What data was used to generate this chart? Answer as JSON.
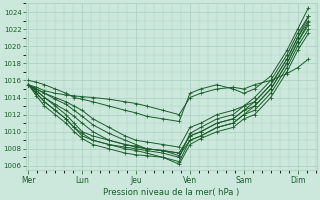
{
  "xlabel": "Pression niveau de la mer( hPa )",
  "ylim": [
    1005.5,
    1025.0
  ],
  "yticks": [
    1006,
    1008,
    1010,
    1012,
    1014,
    1016,
    1018,
    1020,
    1022,
    1024
  ],
  "xtick_labels": [
    "Mer",
    "Lun",
    "Jeu",
    "Ven",
    "Sam",
    "Dim"
  ],
  "xtick_positions": [
    0,
    1,
    2,
    3,
    4,
    5
  ],
  "xlim": [
    -0.05,
    5.35
  ],
  "background_color": "#cce8dc",
  "grid_color": "#aacfbe",
  "line_color": "#1a5c2a",
  "line_width": 0.7,
  "marker": "+",
  "marker_size": 2.5,
  "lines": [
    {
      "x": [
        0.0,
        0.15,
        0.3,
        0.5,
        0.7,
        0.85,
        1.0,
        1.2,
        1.5,
        1.8,
        2.0,
        2.2,
        2.5,
        2.8,
        3.0,
        3.2,
        3.5,
        3.8,
        4.0,
        4.2,
        4.5,
        4.8,
        5.0,
        5.2
      ],
      "y": [
        1015.5,
        1015.2,
        1014.8,
        1014.5,
        1014.3,
        1014.2,
        1014.1,
        1014.0,
        1013.8,
        1013.5,
        1013.3,
        1013.0,
        1012.5,
        1012.0,
        1014.0,
        1014.5,
        1015.0,
        1015.2,
        1015.0,
        1015.5,
        1016.0,
        1016.8,
        1017.5,
        1018.5
      ]
    },
    {
      "x": [
        0.0,
        0.15,
        0.3,
        0.5,
        0.7,
        0.85,
        1.0,
        1.2,
        1.5,
        1.8,
        2.0,
        2.2,
        2.5,
        2.8,
        3.0,
        3.2,
        3.5,
        3.8,
        4.0,
        4.2,
        4.5,
        4.8,
        5.0,
        5.2
      ],
      "y": [
        1015.5,
        1015.0,
        1014.5,
        1014.0,
        1013.5,
        1013.0,
        1012.5,
        1011.5,
        1010.5,
        1009.5,
        1009.0,
        1008.8,
        1008.5,
        1008.2,
        1010.5,
        1011.0,
        1012.0,
        1012.5,
        1013.0,
        1014.0,
        1016.0,
        1019.0,
        1021.5,
        1023.5
      ]
    },
    {
      "x": [
        0.0,
        0.15,
        0.3,
        0.5,
        0.7,
        0.85,
        1.0,
        1.2,
        1.5,
        1.8,
        2.0,
        2.2,
        2.5,
        2.8,
        3.0,
        3.2,
        3.5,
        3.8,
        4.0,
        4.2,
        4.5,
        4.8,
        5.0,
        5.2
      ],
      "y": [
        1015.5,
        1015.0,
        1014.5,
        1013.8,
        1013.2,
        1012.5,
        1011.8,
        1010.8,
        1009.8,
        1009.0,
        1008.5,
        1008.0,
        1007.8,
        1007.5,
        1009.5,
        1010.0,
        1011.0,
        1011.5,
        1012.5,
        1013.5,
        1015.5,
        1018.5,
        1021.0,
        1023.0
      ]
    },
    {
      "x": [
        0.0,
        0.15,
        0.3,
        0.5,
        0.7,
        0.85,
        1.0,
        1.2,
        1.5,
        1.8,
        2.0,
        2.2,
        2.5,
        2.8,
        3.0,
        3.2,
        3.5,
        3.8,
        4.0,
        4.2,
        4.5,
        4.8,
        5.0,
        5.2
      ],
      "y": [
        1015.5,
        1014.8,
        1014.0,
        1013.2,
        1012.5,
        1011.8,
        1011.0,
        1010.0,
        1009.0,
        1008.5,
        1008.2,
        1008.0,
        1007.8,
        1007.2,
        1009.0,
        1009.5,
        1010.5,
        1011.0,
        1012.0,
        1013.0,
        1015.0,
        1018.0,
        1020.5,
        1022.5
      ]
    },
    {
      "x": [
        0.0,
        0.15,
        0.3,
        0.5,
        0.7,
        0.85,
        1.0,
        1.2,
        1.5,
        1.8,
        2.0,
        2.2,
        2.5,
        2.8,
        3.0,
        3.2,
        3.5,
        3.8,
        4.0,
        4.2,
        4.5,
        4.8,
        5.0,
        5.2
      ],
      "y": [
        1015.5,
        1014.5,
        1013.5,
        1012.5,
        1011.5,
        1010.5,
        1009.8,
        1009.0,
        1008.5,
        1008.0,
        1007.8,
        1007.5,
        1007.0,
        1006.5,
        1009.0,
        1009.5,
        1010.5,
        1011.0,
        1012.0,
        1012.5,
        1014.5,
        1017.5,
        1020.0,
        1022.0
      ]
    },
    {
      "x": [
        0.0,
        0.15,
        0.3,
        0.5,
        0.7,
        0.85,
        1.0,
        1.2,
        1.5,
        1.8,
        2.0,
        2.2,
        2.5,
        2.8,
        3.0,
        3.2,
        3.5,
        3.8,
        4.0,
        4.2,
        4.5,
        4.8,
        5.0,
        5.2
      ],
      "y": [
        1015.5,
        1014.2,
        1013.0,
        1012.0,
        1011.0,
        1010.0,
        1009.2,
        1008.5,
        1008.0,
        1007.5,
        1007.3,
        1007.2,
        1007.0,
        1006.2,
        1008.5,
        1009.2,
        1010.0,
        1010.5,
        1011.5,
        1012.0,
        1014.0,
        1017.0,
        1019.5,
        1021.5
      ]
    },
    {
      "x": [
        0.0,
        0.15,
        0.3,
        0.5,
        0.7,
        0.85,
        1.0,
        1.2,
        1.5,
        1.8,
        2.0,
        2.2,
        2.5,
        2.8,
        3.0,
        3.2,
        3.5,
        3.8,
        4.0,
        4.2,
        4.5,
        4.8,
        5.0,
        5.2
      ],
      "y": [
        1016.0,
        1015.8,
        1015.5,
        1015.0,
        1014.5,
        1014.0,
        1013.8,
        1013.5,
        1013.0,
        1012.5,
        1012.2,
        1011.8,
        1011.5,
        1011.2,
        1014.5,
        1015.0,
        1015.5,
        1015.0,
        1014.5,
        1015.0,
        1016.5,
        1019.5,
        1022.0,
        1024.5
      ]
    },
    {
      "x": [
        0.0,
        0.15,
        0.3,
        0.5,
        0.7,
        0.85,
        1.0,
        1.2,
        1.5,
        1.8,
        2.0,
        2.2,
        2.5,
        2.8,
        3.0,
        3.2,
        3.5,
        3.8,
        4.0,
        4.2,
        4.5,
        4.8,
        5.0,
        5.2
      ],
      "y": [
        1015.5,
        1014.8,
        1014.0,
        1013.0,
        1012.0,
        1011.0,
        1010.0,
        1009.5,
        1009.0,
        1008.5,
        1008.3,
        1008.0,
        1007.8,
        1007.5,
        1009.5,
        1010.0,
        1011.0,
        1011.5,
        1012.5,
        1013.0,
        1015.0,
        1018.0,
        1020.5,
        1022.8
      ]
    },
    {
      "x": [
        0.0,
        0.15,
        0.3,
        0.5,
        0.7,
        0.85,
        1.0,
        1.2,
        1.5,
        1.8,
        2.0,
        2.2,
        2.5,
        2.8,
        3.0,
        3.2,
        3.5,
        3.8,
        4.0,
        4.2,
        4.5,
        4.8,
        5.0,
        5.2
      ],
      "y": [
        1015.5,
        1014.5,
        1013.5,
        1012.5,
        1011.5,
        1010.5,
        1009.5,
        1009.0,
        1008.5,
        1008.2,
        1008.0,
        1007.8,
        1007.5,
        1007.0,
        1009.8,
        1010.5,
        1011.5,
        1012.0,
        1013.0,
        1013.5,
        1015.5,
        1018.5,
        1021.0,
        1023.5
      ]
    }
  ]
}
